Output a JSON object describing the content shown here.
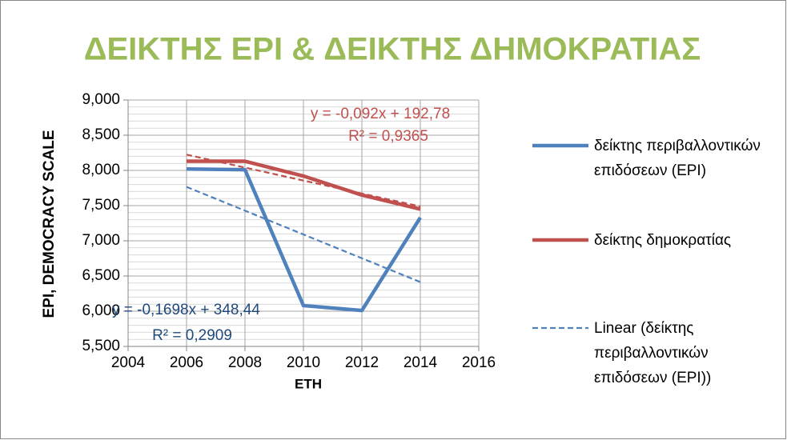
{
  "chart_data": {
    "type": "line",
    "title": "ΔΕΙΚΤΗΣ EPI & ΔΕΙΚΤΗΣ ΔΗΜΟΚΡΑΤΙΑΣ",
    "x_label": "ETH",
    "y_label": "EPI, DEMOCRACY SCALE",
    "x": [
      2006,
      2008,
      2010,
      2012,
      2014
    ],
    "series": [
      {
        "name": "δείκτης περιβαλλοντικών επιδόσεων (EPI)",
        "color": "#4f81bd",
        "values": [
          8.02,
          8.01,
          6.08,
          6.01,
          7.33
        ],
        "trendline": {
          "name": "Linear (δείκτης περιβαλλοντικών επιδόσεων (EPI))",
          "equation": "y = -0,1698x + 348,44",
          "r_squared": "R² = 0,2909",
          "color": "#4f81bd"
        }
      },
      {
        "name": "δείκτης δημοκρατίας",
        "color": "#c0504d",
        "values": [
          8.13,
          8.13,
          7.92,
          7.65,
          7.45
        ],
        "trendline": {
          "equation": "y = -0,092x + 192,78",
          "r_squared": "R² = 0,9365",
          "color": "#c0504d"
        }
      }
    ],
    "xlim": [
      2004,
      2016
    ],
    "xticks": [
      2004,
      2006,
      2008,
      2010,
      2012,
      2014,
      2016
    ],
    "ylim": [
      5.5,
      9
    ],
    "yticks": [
      {
        "value": 5.5,
        "label": "5,500"
      },
      {
        "value": 6,
        "label": "6,000"
      },
      {
        "value": 6.5,
        "label": "6,500"
      },
      {
        "value": 7,
        "label": "7,000"
      },
      {
        "value": 7.5,
        "label": "7,500"
      },
      {
        "value": 8,
        "label": "8,000"
      },
      {
        "value": 8.5,
        "label": "8,500"
      },
      {
        "value": 9,
        "label": "9,000"
      }
    ],
    "y_minor_step": 0.1,
    "grid": true,
    "legend": "right"
  }
}
